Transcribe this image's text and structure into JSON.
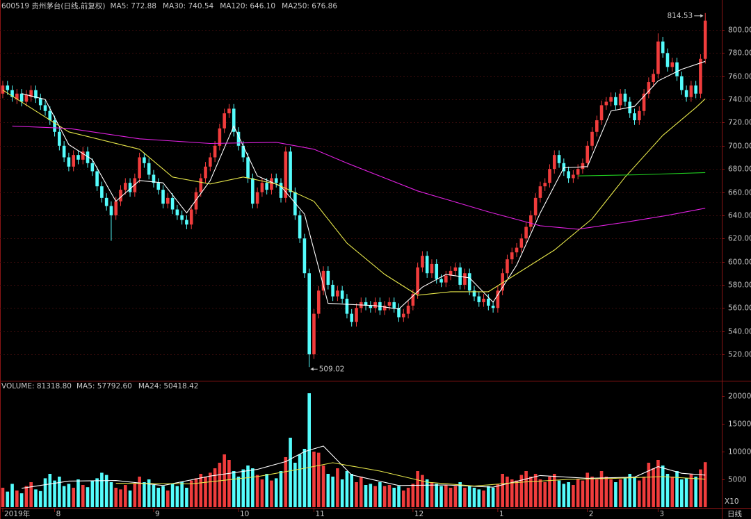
{
  "chart_data": [
    {
      "type": "candlestick",
      "title": "600519 贵州茅台(日线,前复权)",
      "categories": [
        "2019年",
        null,
        null,
        null,
        null,
        null,
        null,
        null,
        null,
        null,
        null,
        "8",
        null,
        null,
        null,
        null,
        null,
        null,
        null,
        null,
        null,
        null,
        null,
        null,
        null,
        null,
        null,
        null,
        null,
        null,
        null,
        null,
        "9",
        null,
        null,
        null,
        null,
        null,
        null,
        null,
        null,
        null,
        null,
        null,
        null,
        null,
        null,
        null,
        null,
        null,
        "10",
        null,
        null,
        null,
        null,
        null,
        null,
        null,
        null,
        null,
        null,
        null,
        null,
        null,
        null,
        null,
        "11",
        null,
        null,
        null,
        null,
        null,
        null,
        null,
        null,
        null,
        null,
        null,
        null,
        null,
        null,
        null,
        null,
        null,
        null,
        null,
        null,
        "12",
        null,
        null,
        null,
        null,
        null,
        null,
        null,
        null,
        null,
        null,
        null,
        null,
        null,
        null,
        null,
        null,
        null,
        "1",
        null,
        null,
        null,
        null,
        null,
        null,
        null,
        null,
        null,
        null,
        null,
        null,
        null,
        null,
        null,
        null,
        null,
        null,
        "2",
        null,
        null,
        null,
        null,
        null,
        null,
        null,
        null,
        null,
        null,
        null,
        null,
        null,
        null,
        "3",
        null,
        null,
        null,
        null,
        null,
        null,
        null,
        null,
        null,
        null
      ],
      "open": [
        745,
        752,
        748,
        740,
        745,
        738,
        742,
        748,
        741,
        735,
        730,
        722,
        712,
        700,
        690,
        682,
        692,
        688,
        695,
        685,
        678,
        665,
        655,
        648,
        640,
        652,
        662,
        668,
        660,
        672,
        690,
        685,
        675,
        668,
        662,
        650,
        655,
        645,
        640,
        636,
        632,
        645,
        660,
        672,
        682,
        690,
        700,
        715,
        728,
        732,
        712,
        700,
        690,
        672,
        650,
        660,
        668,
        662,
        672,
        668,
        655,
        695,
        660,
        640,
        620,
        590,
        520,
        555,
        575,
        592,
        580,
        570,
        575,
        568,
        555,
        548,
        560,
        565,
        562,
        560,
        565,
        558,
        562,
        565,
        560,
        552,
        555,
        562,
        572,
        595,
        605,
        590,
        598,
        585,
        582,
        588,
        592,
        595,
        580,
        590,
        575,
        570,
        565,
        568,
        562,
        560,
        575,
        590,
        602,
        608,
        612,
        620,
        630,
        640,
        655,
        665,
        668,
        680,
        692,
        685,
        678,
        672,
        675,
        680,
        685,
        700,
        712,
        722,
        735,
        738,
        742,
        735,
        745,
        738,
        728,
        722,
        730,
        745,
        755,
        762,
        790,
        780,
        768,
        772,
        760,
        748,
        742,
        752,
        745,
        775
      ],
      "high": [
        756,
        756,
        752,
        749,
        749,
        748,
        752,
        752,
        745,
        739,
        734,
        726,
        716,
        704,
        694,
        696,
        696,
        699,
        699,
        689,
        682,
        669,
        659,
        652,
        656,
        666,
        672,
        672,
        676,
        694,
        694,
        689,
        679,
        672,
        666,
        659,
        659,
        649,
        644,
        640,
        649,
        664,
        676,
        686,
        694,
        704,
        719,
        732,
        736,
        736,
        716,
        704,
        694,
        676,
        664,
        672,
        672,
        676,
        676,
        672,
        699,
        699,
        664,
        644,
        624,
        594,
        559,
        579,
        596,
        596,
        584,
        579,
        579,
        572,
        559,
        564,
        569,
        569,
        566,
        569,
        569,
        566,
        569,
        569,
        564,
        559,
        566,
        576,
        599,
        609,
        609,
        602,
        602,
        589,
        592,
        596,
        599,
        599,
        594,
        594,
        579,
        574,
        572,
        572,
        566,
        579,
        594,
        606,
        612,
        616,
        624,
        634,
        644,
        659,
        669,
        672,
        684,
        696,
        696,
        689,
        682,
        679,
        684,
        689,
        704,
        716,
        726,
        739,
        742,
        746,
        746,
        749,
        749,
        742,
        732,
        734,
        749,
        759,
        766,
        797,
        794,
        784,
        776,
        776,
        764,
        752,
        756,
        756,
        779,
        814.53
      ],
      "low": [
        741,
        744,
        738,
        736,
        734,
        734,
        738,
        737,
        731,
        726,
        718,
        708,
        696,
        686,
        678,
        678,
        684,
        684,
        681,
        674,
        661,
        651,
        644,
        618,
        636,
        648,
        658,
        656,
        656,
        668,
        681,
        671,
        664,
        658,
        646,
        646,
        641,
        636,
        632,
        628,
        628,
        641,
        656,
        668,
        678,
        686,
        696,
        711,
        724,
        708,
        696,
        686,
        668,
        646,
        646,
        656,
        658,
        658,
        664,
        651,
        651,
        656,
        636,
        616,
        586,
        509.02,
        516,
        551,
        571,
        576,
        566,
        566,
        564,
        551,
        544,
        544,
        556,
        558,
        556,
        556,
        554,
        554,
        558,
        556,
        548,
        548,
        551,
        558,
        568,
        591,
        586,
        586,
        581,
        578,
        578,
        584,
        588,
        576,
        576,
        571,
        566,
        561,
        561,
        558,
        556,
        556,
        571,
        586,
        598,
        604,
        608,
        616,
        626,
        636,
        651,
        661,
        664,
        676,
        681,
        674,
        668,
        668,
        671,
        676,
        681,
        696,
        708,
        718,
        731,
        734,
        731,
        731,
        734,
        724,
        718,
        718,
        726,
        741,
        751,
        758,
        776,
        764,
        764,
        756,
        744,
        738,
        738,
        741,
        741,
        771
      ],
      "close": [
        752,
        748,
        742,
        745,
        738,
        744,
        748,
        741,
        735,
        730,
        722,
        712,
        700,
        690,
        682,
        692,
        688,
        695,
        685,
        678,
        665,
        655,
        648,
        640,
        652,
        662,
        668,
        660,
        672,
        690,
        685,
        675,
        668,
        662,
        650,
        655,
        645,
        640,
        636,
        632,
        645,
        660,
        672,
        682,
        690,
        700,
        715,
        728,
        732,
        712,
        700,
        690,
        672,
        650,
        660,
        668,
        662,
        672,
        668,
        655,
        695,
        660,
        640,
        620,
        590,
        520,
        555,
        575,
        592,
        580,
        570,
        575,
        568,
        555,
        548,
        560,
        565,
        562,
        560,
        565,
        558,
        562,
        565,
        560,
        552,
        555,
        562,
        572,
        595,
        605,
        590,
        598,
        585,
        582,
        588,
        592,
        595,
        580,
        590,
        575,
        570,
        565,
        568,
        562,
        560,
        575,
        590,
        602,
        608,
        612,
        620,
        630,
        640,
        655,
        665,
        668,
        680,
        692,
        685,
        678,
        672,
        675,
        680,
        685,
        700,
        712,
        722,
        735,
        738,
        742,
        735,
        745,
        738,
        728,
        722,
        730,
        745,
        755,
        762,
        790,
        780,
        768,
        772,
        760,
        748,
        742,
        752,
        745,
        775,
        808
      ],
      "up_color": "#f03c3c",
      "down_color": "#54fcfc",
      "ylim": [
        497.2,
        825.8
      ],
      "yticks": [
        {
          "value": 520,
          "label": "520.00"
        },
        {
          "value": 540,
          "label": "540.00"
        },
        {
          "value": 560,
          "label": "560.00"
        },
        {
          "value": 580,
          "label": "580.00"
        },
        {
          "value": 600,
          "label": "600.00"
        },
        {
          "value": 620,
          "label": "620.00"
        },
        {
          "value": 640,
          "label": "640.00"
        },
        {
          "value": 660,
          "label": "660.00"
        },
        {
          "value": 680,
          "label": "680.00"
        },
        {
          "value": 700,
          "label": "700.00"
        },
        {
          "value": 720,
          "label": "720.00"
        },
        {
          "value": 740,
          "label": "740.00"
        },
        {
          "value": 760,
          "label": "760.00"
        },
        {
          "value": 780,
          "label": "780.00"
        },
        {
          "value": 800,
          "label": "800.00"
        }
      ],
      "grid": true,
      "lines": [
        {
          "name": "MA5: 772.88",
          "color": "#ffffff",
          "x": [
            4,
            9,
            14,
            19,
            24,
            29,
            34,
            39,
            44,
            49,
            54,
            59,
            64,
            69,
            74,
            79,
            84,
            89,
            94,
            99,
            104,
            109,
            114,
            119,
            124,
            129,
            134,
            139,
            144,
            149
          ],
          "values": [
            745,
            740,
            701,
            688,
            652,
            670,
            668,
            642,
            670,
            717,
            674,
            665,
            641,
            564,
            563,
            562,
            559,
            578,
            589,
            586,
            565,
            597,
            642,
            681,
            682,
            730,
            734,
            756,
            766,
            772.88
          ]
        },
        {
          "name": "MA30: 740.54",
          "color": "#e6e64a",
          "x": [
            0,
            14,
            29,
            36,
            44,
            51,
            58,
            66,
            73,
            81,
            88,
            95,
            103,
            110,
            117,
            125,
            132,
            140,
            147,
            149
          ],
          "values": [
            748,
            712,
            697,
            673,
            667,
            673,
            667,
            652,
            616,
            589,
            571,
            574,
            574,
            592,
            610,
            637,
            673,
            709,
            733,
            740.54
          ]
        },
        {
          "name": "MA120: 646.10",
          "color": "#e020e0",
          "x": [
            2,
            14,
            29,
            44,
            58,
            66,
            73,
            88,
            103,
            114,
            122,
            132,
            141,
            149
          ],
          "values": [
            717,
            715,
            706,
            702,
            703,
            697,
            685,
            661,
            643,
            631,
            628,
            634,
            640,
            646.1
          ]
        },
        {
          "name": "MA250: 676.86",
          "color": "#20d020",
          "x": [
            122,
            135,
            149
          ],
          "values": [
            674,
            675,
            676.86
          ]
        }
      ]
    },
    {
      "type": "bar",
      "title": "VOLUME: 81318.80",
      "values": [
        3500,
        2800,
        4200,
        3000,
        2500,
        3800,
        4500,
        3200,
        2900,
        5200,
        6000,
        4800,
        5500,
        3800,
        4200,
        3500,
        5000,
        4000,
        3600,
        4800,
        5200,
        6200,
        5800,
        4500,
        3500,
        3200,
        4000,
        3000,
        4300,
        5500,
        4500,
        5000,
        4000,
        3500,
        3800,
        3000,
        4200,
        3800,
        4600,
        3500,
        4800,
        5200,
        6000,
        5500,
        6200,
        7000,
        8000,
        9500,
        8500,
        6500,
        5500,
        6800,
        7500,
        7000,
        5800,
        5000,
        6000,
        4800,
        5200,
        6500,
        9000,
        12500,
        8000,
        9500,
        10500,
        20500,
        10000,
        9800,
        7500,
        6000,
        5500,
        7000,
        5000,
        6500,
        6000,
        4500,
        5500,
        4000,
        4200,
        3800,
        4500,
        3800,
        4000,
        3500,
        3800,
        3000,
        3500,
        4200,
        6500,
        5800,
        5000,
        4500,
        4200,
        3800,
        4000,
        3500,
        3800,
        4500,
        3500,
        3800,
        3500,
        3200,
        3000,
        3800,
        3500,
        4200,
        6000,
        5500,
        5000,
        4800,
        5800,
        6500,
        5500,
        6000,
        5000,
        4500,
        5500,
        6000,
        4800,
        4200,
        4500,
        4000,
        5000,
        4800,
        6200,
        5500,
        5000,
        6500,
        5500,
        5000,
        4500,
        5000,
        5200,
        6000,
        5500,
        4800,
        5500,
        8000,
        7000,
        8500,
        7500,
        6000,
        5500,
        6500,
        5000,
        5200,
        6000,
        5500,
        6800,
        8100
      ],
      "ylim": [
        0,
        22625
      ],
      "yticks": [
        5000,
        10000,
        15000,
        20000
      ],
      "unit_note": "X10",
      "period_label": "日线",
      "lines": [
        {
          "name": "MA5: 57792.60",
          "color": "#ffffff",
          "x": [
            4,
            14,
            24,
            34,
            44,
            54,
            60,
            64,
            68,
            74,
            84,
            94,
            104,
            114,
            124,
            134,
            139,
            144,
            149
          ],
          "values": [
            3400,
            4700,
            4800,
            3900,
            5600,
            6800,
            8200,
            10000,
            11000,
            5800,
            3900,
            4000,
            3600,
            5700,
            5200,
            5400,
            7300,
            6100,
            5779.26
          ]
        },
        {
          "name": "MA24: 50418.42",
          "color": "#e6e64a",
          "x": [
            24,
            40,
            54,
            64,
            70,
            80,
            90,
            100,
            110,
            120,
            130,
            140,
            149
          ],
          "values": [
            4300,
            4200,
            5500,
            7000,
            8000,
            6500,
            4500,
            3800,
            4500,
            5000,
            5200,
            5500,
            5041.84
          ]
        }
      ]
    }
  ]
}
